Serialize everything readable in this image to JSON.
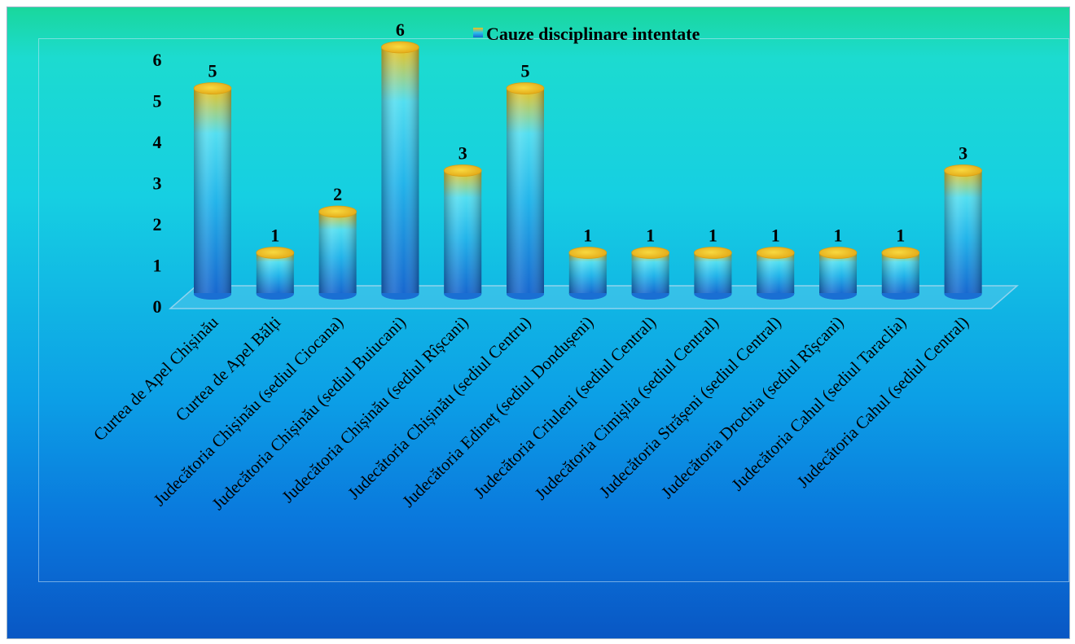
{
  "chart_data": {
    "type": "bar",
    "title": "",
    "xlabel": "",
    "ylabel": "",
    "ylim": [
      0,
      6
    ],
    "yticks": [
      "0",
      "1",
      "2",
      "3",
      "4",
      "5",
      "6"
    ],
    "legend_position": "top",
    "categories": [
      "Curtea de Apel Chișinău",
      "Curtea de Apel Bălți",
      "Judecătoria Chișinău (sediul Ciocana)",
      "Judecătoria Chișinău (sediul Buiucani)",
      "Judecătoria Chișinău (sediul Rîșcani)",
      "Judecătoria Chișinău (sediul Centru)",
      "Judecătoria Edineț (sediul Dondușeni)",
      "Judecătoria Criuleni (sediul Central)",
      "Judecătoria Cimișlia (sediul Central)",
      "Judecătoria Strășeni (sediul Central)",
      "Judecătoria Drochia (sediul Rîșcani)",
      "Judecătoria Cahul (sediul Taraclia)",
      "Judecătoria Cahul (sediul Central)"
    ],
    "series": [
      {
        "name": "Cauze disciplinare intentate",
        "values": [
          5,
          1,
          2,
          6,
          3,
          5,
          1,
          1,
          1,
          1,
          1,
          1,
          3
        ]
      }
    ],
    "data_labels": [
      "5",
      "1",
      "2",
      "6",
      "3",
      "5",
      "1",
      "1",
      "1",
      "1",
      "1",
      "1",
      "3"
    ],
    "colors": {
      "bar_base": "#1a73d6",
      "bar_mid": "#2bc7ee",
      "bar_top": "#f0c21a",
      "cap": "#f3cf2a",
      "background_top": "#1ad79c",
      "background_bottom": "#0957c4"
    }
  }
}
